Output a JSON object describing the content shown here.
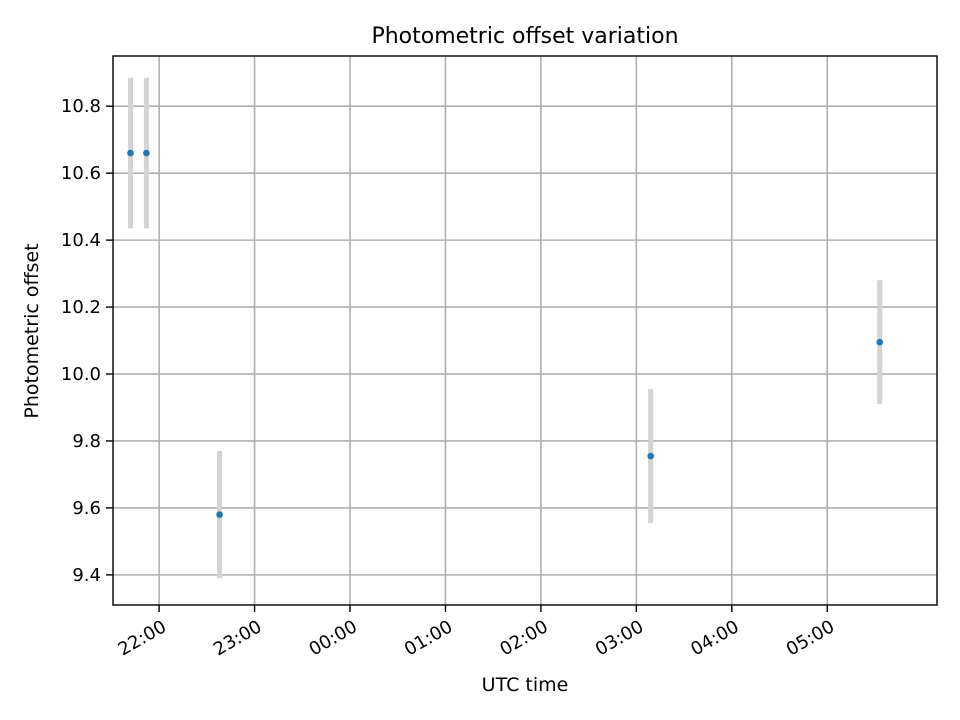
{
  "chart_data": {
    "type": "scatter",
    "title": "Photometric offset variation",
    "xlabel": "UTC time",
    "ylabel": "Photometric offset",
    "x_ticks": [
      "22:00",
      "23:00",
      "00:00",
      "01:00",
      "02:00",
      "03:00",
      "04:00",
      "05:00"
    ],
    "y_ticks": [
      "9.4",
      "9.6",
      "9.8",
      "10.0",
      "10.2",
      "10.4",
      "10.6",
      "10.8"
    ],
    "xlim": [
      "21:31",
      "06:09"
    ],
    "ylim": [
      9.31,
      10.95
    ],
    "grid": true,
    "colors": {
      "marker": "#1f77b4",
      "errorbar": "#d3d3d3"
    },
    "points": [
      {
        "time": "21:42",
        "value": 10.66,
        "error": 0.225
      },
      {
        "time": "21:52",
        "value": 10.66,
        "error": 0.225
      },
      {
        "time": "22:38",
        "value": 9.58,
        "error": 0.19
      },
      {
        "time": "03:09",
        "value": 9.755,
        "error": 0.2
      },
      {
        "time": "05:33",
        "value": 10.095,
        "error": 0.185
      }
    ]
  }
}
